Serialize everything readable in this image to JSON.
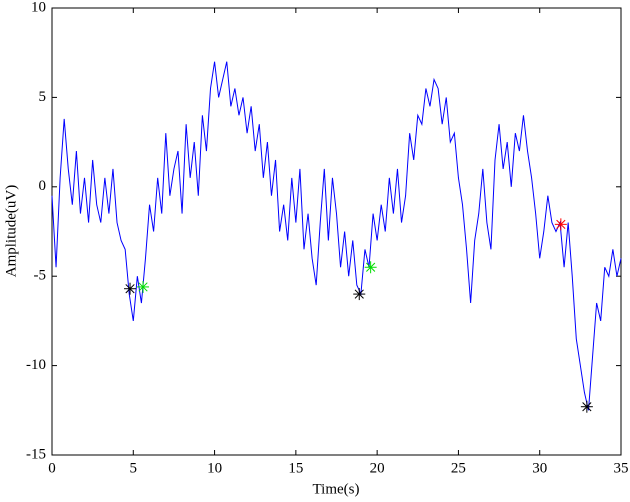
{
  "chart_data": {
    "type": "line",
    "xlabel": "Time(s)",
    "ylabel": "Amplitude(uV)",
    "xlim": [
      0,
      35
    ],
    "ylim": [
      -15,
      10
    ],
    "xticks": [
      0,
      5,
      10,
      15,
      20,
      25,
      30,
      35
    ],
    "yticks": [
      -15,
      -10,
      -5,
      0,
      5,
      10
    ],
    "series": [
      {
        "color": "#0000ff",
        "x": [
          0,
          0.25,
          0.5,
          0.75,
          1,
          1.25,
          1.5,
          1.75,
          2,
          2.25,
          2.5,
          2.75,
          3,
          3.25,
          3.5,
          3.75,
          4,
          4.25,
          4.5,
          4.75,
          5,
          5.25,
          5.5,
          5.75,
          6,
          6.25,
          6.5,
          6.75,
          7,
          7.25,
          7.5,
          7.75,
          8,
          8.25,
          8.5,
          8.75,
          9,
          9.25,
          9.5,
          9.75,
          10,
          10.25,
          10.5,
          10.75,
          11,
          11.25,
          11.5,
          11.75,
          12,
          12.25,
          12.5,
          12.75,
          13,
          13.25,
          13.5,
          13.75,
          14,
          14.25,
          14.5,
          14.75,
          15,
          15.25,
          15.5,
          15.75,
          16,
          16.25,
          16.5,
          16.75,
          17,
          17.25,
          17.5,
          17.75,
          18,
          18.25,
          18.5,
          18.75,
          19,
          19.25,
          19.5,
          19.75,
          20,
          20.25,
          20.5,
          20.75,
          21,
          21.25,
          21.5,
          21.75,
          22,
          22.25,
          22.5,
          22.75,
          23,
          23.25,
          23.5,
          23.75,
          24,
          24.25,
          24.5,
          24.75,
          25,
          25.25,
          25.5,
          25.75,
          26,
          26.25,
          26.5,
          26.75,
          27,
          27.25,
          27.5,
          27.75,
          28,
          28.25,
          28.5,
          28.75,
          29,
          29.25,
          29.5,
          29.75,
          30,
          30.25,
          30.5,
          30.75,
          31,
          31.25,
          31.5,
          31.75,
          32,
          32.25,
          32.5,
          32.75,
          33,
          33.25,
          33.5,
          33.75,
          34,
          34.25,
          34.5,
          34.75,
          35
        ],
        "values": [
          -0.5,
          -4.5,
          0.5,
          3.8,
          1.0,
          -1.0,
          2.0,
          -1.5,
          0.5,
          -2.0,
          1.5,
          -1.0,
          -2.0,
          0.5,
          -1.5,
          1.0,
          -2.0,
          -3.0,
          -3.5,
          -6.0,
          -7.5,
          -5.0,
          -6.5,
          -4.0,
          -1.0,
          -2.5,
          0.5,
          -1.5,
          3.0,
          -0.5,
          1.0,
          2.0,
          -1.5,
          3.5,
          0.5,
          2.5,
          -0.5,
          4.0,
          2.0,
          5.5,
          7.0,
          5.0,
          6.0,
          7.0,
          4.5,
          5.5,
          4.0,
          5.0,
          3.0,
          4.5,
          2.0,
          3.5,
          0.5,
          2.5,
          -0.5,
          1.5,
          -2.5,
          -1.0,
          -3.0,
          0.5,
          -2.0,
          1.0,
          -3.5,
          -1.5,
          -4.0,
          -5.5,
          -2.0,
          1.0,
          -3.0,
          0.5,
          -1.5,
          -4.5,
          -2.5,
          -5.0,
          -3.0,
          -5.5,
          -6.0,
          -3.5,
          -4.5,
          -1.5,
          -3.0,
          -1.0,
          -2.5,
          0.5,
          -1.5,
          1.0,
          -2.0,
          -0.5,
          3.0,
          1.5,
          4.0,
          3.5,
          5.5,
          4.5,
          6.0,
          5.5,
          3.5,
          5.0,
          2.5,
          3.0,
          0.5,
          -1.0,
          -3.5,
          -6.5,
          -3.0,
          -1.5,
          1.0,
          -2.0,
          -3.5,
          1.5,
          3.5,
          1.0,
          2.5,
          0.0,
          3.0,
          2.0,
          4.0,
          2.0,
          0.5,
          -1.5,
          -4.0,
          -2.5,
          -0.5,
          -2.0,
          -2.5,
          -2.0,
          -4.5,
          -2.0,
          -5.0,
          -8.5,
          -10.0,
          -11.5,
          -12.5,
          -9.5,
          -6.5,
          -7.5,
          -4.5,
          -5.0,
          -3.5,
          -5.0,
          -4.0
        ]
      }
    ],
    "markers": [
      {
        "color": "#000000",
        "x": [
          4.8,
          18.9,
          32.9
        ],
        "values": [
          -5.7,
          -6.0,
          -12.3
        ]
      },
      {
        "color": "#00dd00",
        "x": [
          5.6,
          19.6
        ],
        "values": [
          -5.6,
          -4.5
        ]
      },
      {
        "color": "#ff0000",
        "x": [
          31.3
        ],
        "values": [
          -2.1
        ]
      }
    ]
  }
}
